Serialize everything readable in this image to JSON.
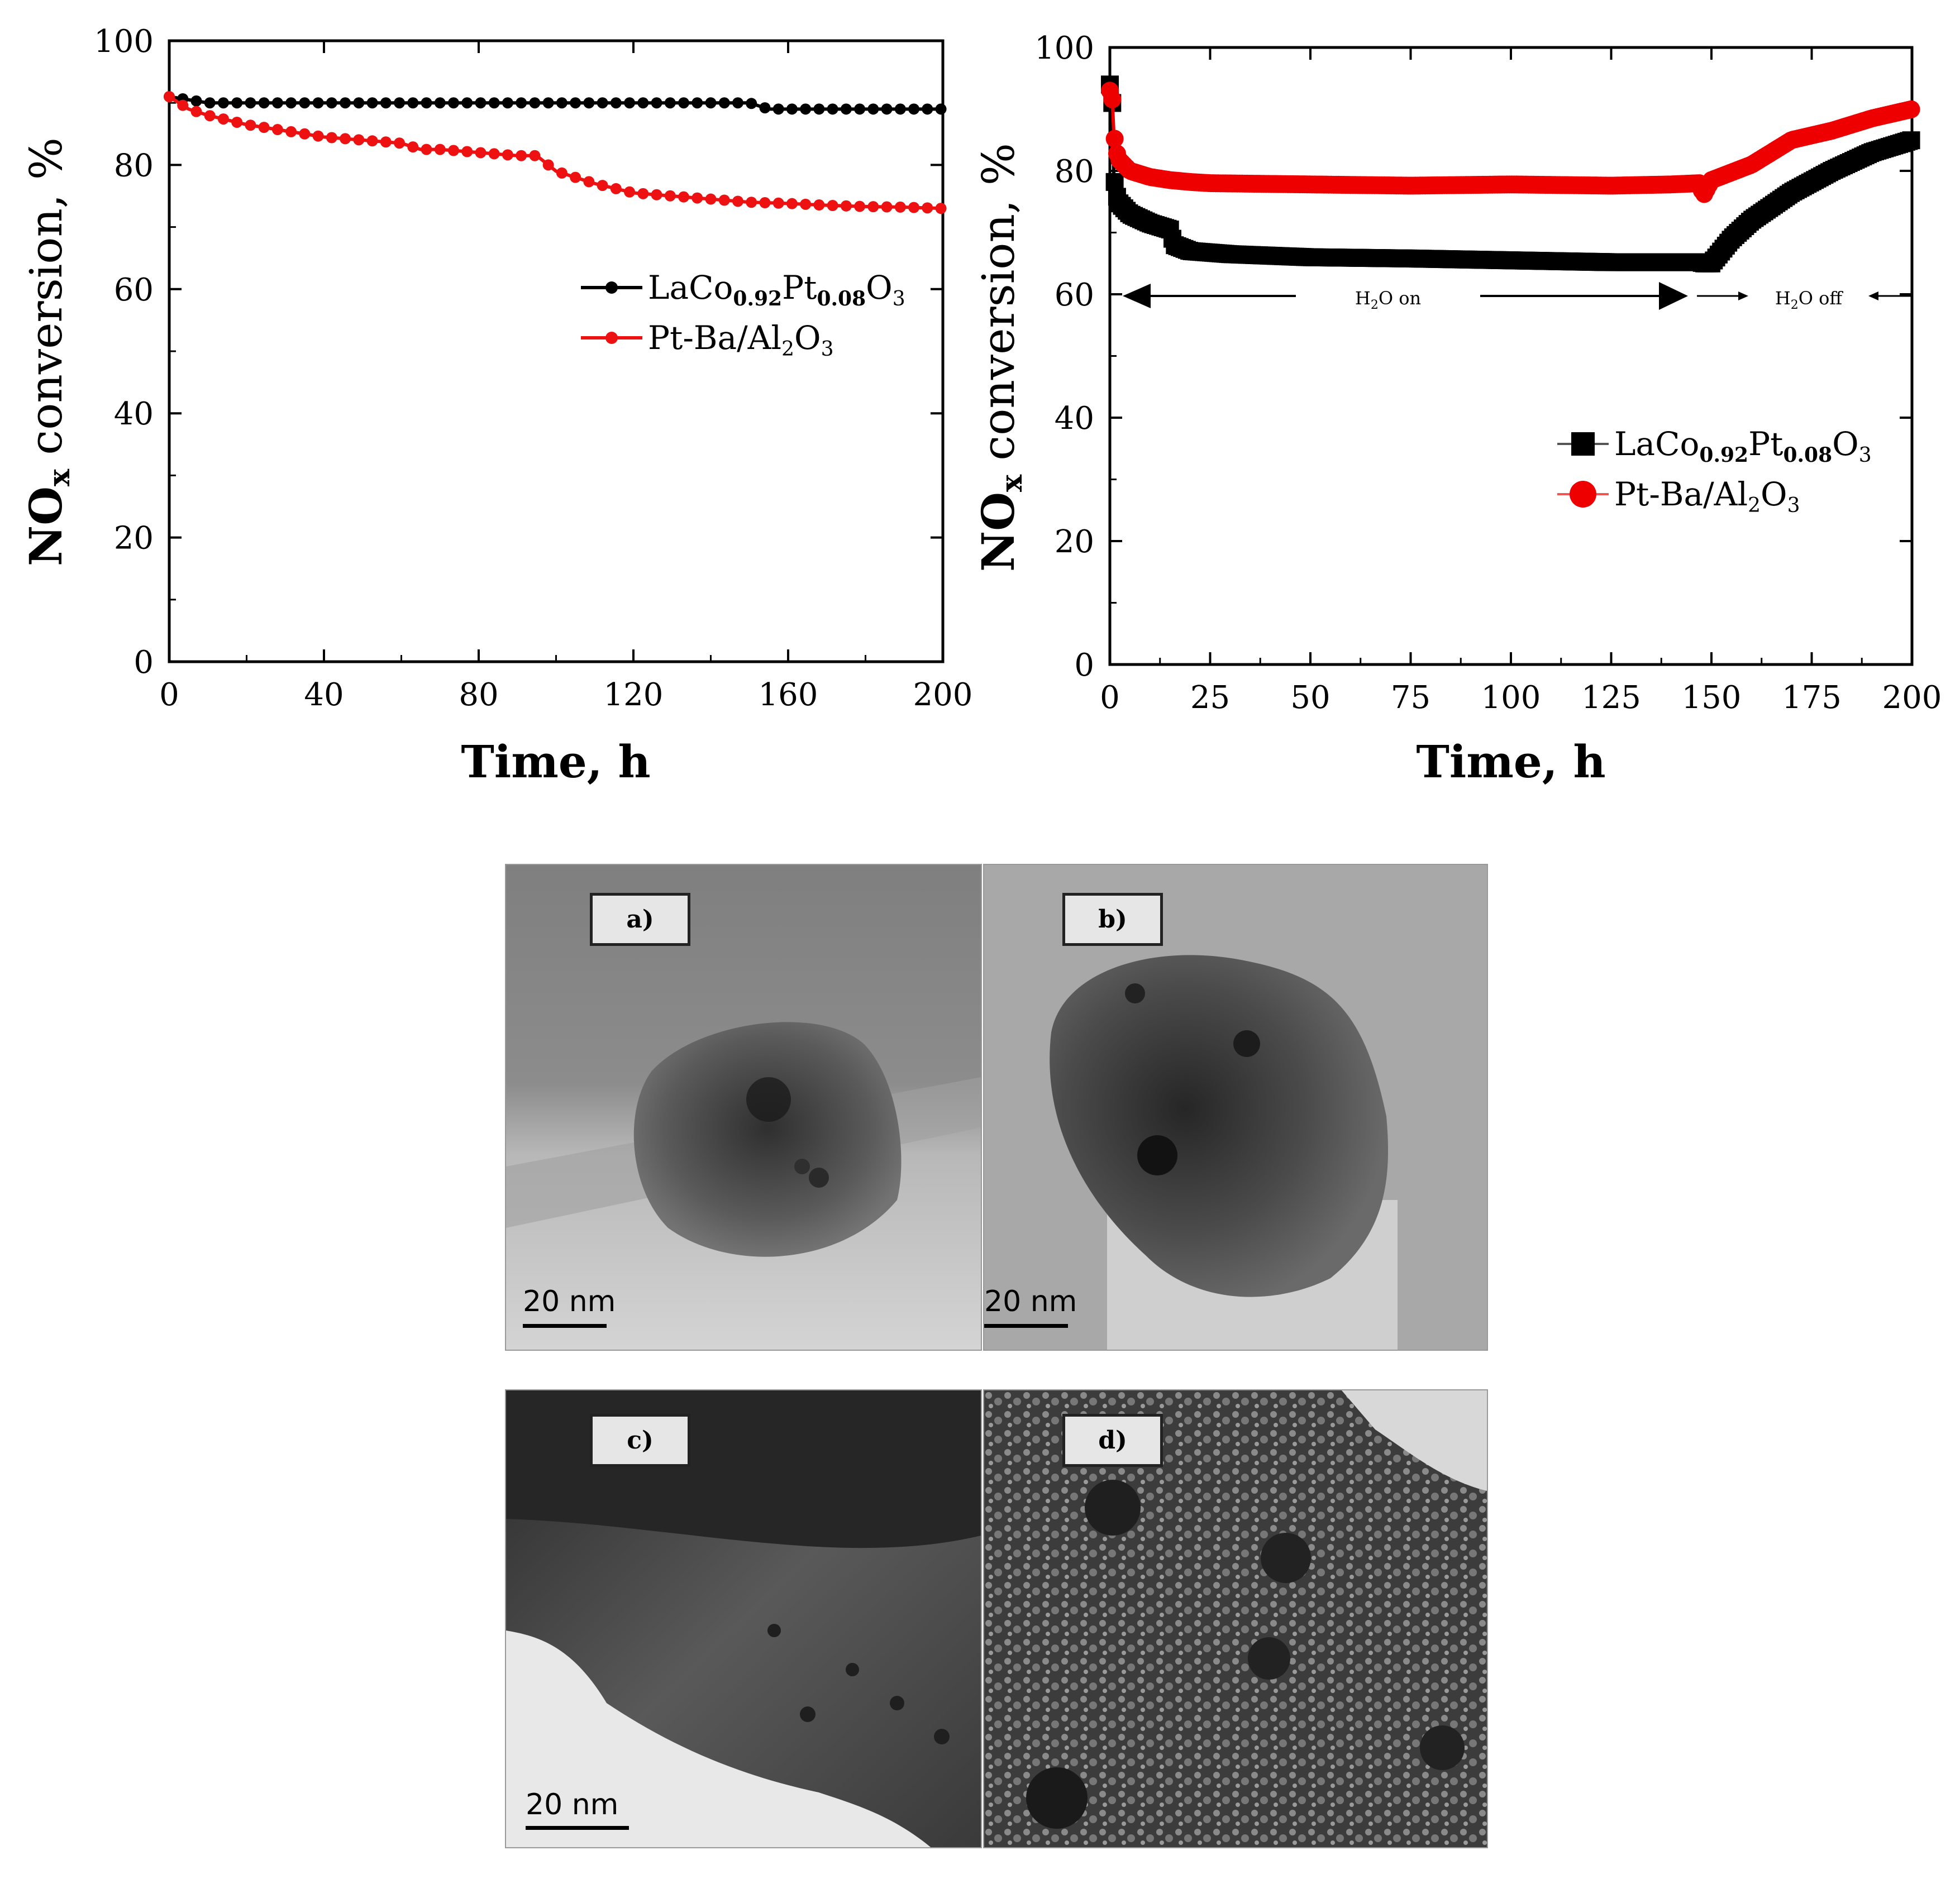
{
  "charts": [
    {
      "ylabel_main": "NO",
      "ylabel_sub": "x",
      "ylabel_rest": " conversion, %",
      "xlabel": "Time, h",
      "legend": [
        {
          "prefix": "LaCo",
          "sub1": "0.92",
          "mid": "Pt",
          "sub2": "0.08",
          "end": "O",
          "sub3": "3"
        },
        {
          "prefix": "Pt-Ba/Al",
          "sub1": "2",
          "mid": "O",
          "sub2": "3"
        }
      ]
    },
    {
      "ylabel_main": "NO",
      "ylabel_sub": "x",
      "ylabel_rest": " conversion, %",
      "xlabel": "Time, h",
      "legend": [
        {
          "prefix": "LaCo",
          "sub1": "0.92",
          "mid": "Pt",
          "sub2": "0.08",
          "end": "O",
          "sub3": "3"
        },
        {
          "prefix": "Pt-Ba/Al",
          "sub1": "2",
          "mid": "O",
          "sub2": "3"
        }
      ],
      "annotations": {
        "h2o_on": {
          "pre": "H",
          "sub": "2",
          "post": "O on"
        },
        "h2o_off": {
          "pre": "H",
          "sub": "2",
          "post": "O off"
        }
      }
    }
  ],
  "chart_data": [
    {
      "type": "line",
      "title": "",
      "xlabel": "Time, h",
      "ylabel": "NOx conversion, %",
      "xlim": [
        0,
        200
      ],
      "ylim": [
        0,
        100
      ],
      "xticks": [
        0,
        40,
        80,
        120,
        160,
        200
      ],
      "yticks": [
        0,
        20,
        40,
        60,
        80,
        100
      ],
      "legend_position": "right",
      "series": [
        {
          "name": "LaCo0.92Pt0.08O3",
          "color": "#000000",
          "marker": "circle",
          "x": [
            0,
            10,
            20,
            30,
            40,
            50,
            60,
            70,
            80,
            90,
            100,
            110,
            120,
            130,
            140,
            150,
            155,
            160,
            170,
            180,
            190,
            200
          ],
          "y": [
            91,
            90,
            90,
            90,
            90,
            90,
            90,
            90,
            90,
            90,
            90,
            90,
            90,
            90,
            90,
            90,
            89,
            89,
            89,
            89,
            89,
            89
          ]
        },
        {
          "name": "Pt-Ba/Al2O3",
          "color": "#ee1111",
          "marker": "circle",
          "x": [
            0,
            5,
            10,
            20,
            30,
            40,
            50,
            60,
            65,
            70,
            80,
            90,
            95,
            100,
            110,
            120,
            130,
            140,
            150,
            160,
            170,
            180,
            190,
            200
          ],
          "y": [
            91,
            89,
            88,
            86.5,
            85.5,
            84.5,
            84,
            83.5,
            82.5,
            82.5,
            82,
            81.5,
            81.5,
            79,
            77,
            75.5,
            75,
            74.5,
            74,
            73.8,
            73.5,
            73.3,
            73.2,
            73
          ]
        }
      ]
    },
    {
      "type": "line",
      "title": "",
      "xlabel": "Time, h",
      "ylabel": "NOx conversion, %",
      "xlim": [
        0,
        200
      ],
      "ylim": [
        0,
        100
      ],
      "xticks": [
        0,
        25,
        50,
        75,
        100,
        125,
        150,
        175,
        200
      ],
      "yticks": [
        0,
        20,
        40,
        60,
        80,
        100
      ],
      "legend_position": "right",
      "annotations": [
        "H2O on",
        "H2O off"
      ],
      "series": [
        {
          "name": "LaCo0.92Pt0.08O3",
          "color": "#000000",
          "marker": "square",
          "x": [
            0,
            0.5,
            1,
            2,
            5,
            10,
            15,
            16,
            18,
            20,
            30,
            50,
            75,
            100,
            125,
            147,
            148,
            150,
            155,
            160,
            170,
            180,
            190,
            200
          ],
          "y": [
            94,
            94,
            79,
            75,
            73,
            71.5,
            70.5,
            68,
            67.5,
            67,
            66.5,
            66,
            65.8,
            65.5,
            65.2,
            65.2,
            65,
            65,
            69,
            72,
            76.5,
            80,
            83,
            85
          ]
        },
        {
          "name": "Pt-Ba/Al2O3",
          "color": "#ee0000",
          "marker": "circle",
          "x": [
            0,
            0.5,
            1,
            2,
            5,
            10,
            15,
            20,
            25,
            50,
            75,
            100,
            125,
            140,
            147,
            148,
            150,
            160,
            165,
            170,
            180,
            190,
            200
          ],
          "y": [
            93,
            93,
            86,
            82,
            80,
            79,
            78.5,
            78.2,
            78,
            77.8,
            77.6,
            77.8,
            77.6,
            77.8,
            78,
            76,
            78.5,
            81,
            83,
            85,
            86.5,
            88.5,
            90
          ]
        }
      ]
    }
  ],
  "tem_panels": [
    {
      "label": "a)",
      "scale": "20 nm"
    },
    {
      "label": "b)",
      "scale": "20 nm"
    },
    {
      "label": "c)",
      "scale": "20 nm"
    },
    {
      "label": "d)",
      "scale": ""
    }
  ]
}
